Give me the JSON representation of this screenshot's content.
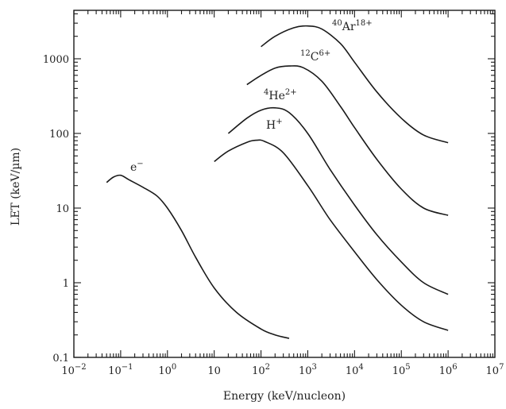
{
  "chart_data": {
    "type": "line",
    "xlabel": "Energy (keV/nucleon)",
    "ylabel": "LET (keV/µm)",
    "x_scale": "log",
    "y_scale": "log",
    "xlim": [
      0.01,
      10000000
    ],
    "ylim": [
      0.1,
      5000
    ],
    "x_ticks": [
      {
        "base": "10",
        "exp": "−2"
      },
      {
        "base": "10",
        "exp": "−1"
      },
      {
        "base": "10",
        "exp": "0"
      },
      {
        "base": "10",
        "exp": ""
      },
      {
        "base": "10",
        "exp": "2"
      },
      {
        "base": "10",
        "exp": "3"
      },
      {
        "base": "10",
        "exp": "4"
      },
      {
        "base": "10",
        "exp": "5"
      },
      {
        "base": "10",
        "exp": "6"
      },
      {
        "base": "10",
        "exp": "7"
      }
    ],
    "y_ticks": [
      "0.1",
      "1",
      "10",
      "100",
      "1000"
    ],
    "grid": false,
    "series": [
      {
        "name": "e−",
        "label_base": "e",
        "label_pre": "",
        "label_sup": "−",
        "points": [
          [
            0.05,
            22
          ],
          [
            0.07,
            26
          ],
          [
            0.1,
            27.5
          ],
          [
            0.15,
            24
          ],
          [
            0.3,
            19
          ],
          [
            0.6,
            14.5
          ],
          [
            1,
            10
          ],
          [
            2,
            5
          ],
          [
            4,
            2.2
          ],
          [
            10,
            0.85
          ],
          [
            30,
            0.4
          ],
          [
            100,
            0.24
          ],
          [
            200,
            0.2
          ],
          [
            400,
            0.18
          ]
        ]
      },
      {
        "name": "H+",
        "label_base": "H",
        "label_pre": "",
        "label_sup": "+",
        "points": [
          [
            10,
            42
          ],
          [
            20,
            58
          ],
          [
            50,
            76
          ],
          [
            80,
            81
          ],
          [
            120,
            78
          ],
          [
            300,
            55
          ],
          [
            1000,
            20
          ],
          [
            3000,
            7
          ],
          [
            10000,
            2.6
          ],
          [
            30000,
            1.1
          ],
          [
            100000,
            0.5
          ],
          [
            300000,
            0.3
          ],
          [
            1000000,
            0.23
          ]
        ]
      },
      {
        "name": "4He2+",
        "label_base": "He",
        "label_pre": "4",
        "label_sup": "2+",
        "points": [
          [
            20,
            100
          ],
          [
            50,
            160
          ],
          [
            100,
            205
          ],
          [
            200,
            220
          ],
          [
            400,
            190
          ],
          [
            1000,
            100
          ],
          [
            3000,
            33
          ],
          [
            10000,
            11
          ],
          [
            30000,
            4.4
          ],
          [
            100000,
            1.9
          ],
          [
            300000,
            1.0
          ],
          [
            1000000,
            0.7
          ]
        ]
      },
      {
        "name": "12C6+",
        "label_base": "C",
        "label_pre": "12",
        "label_sup": "6+",
        "points": [
          [
            50,
            450
          ],
          [
            100,
            600
          ],
          [
            200,
            750
          ],
          [
            400,
            800
          ],
          [
            800,
            760
          ],
          [
            2000,
            500
          ],
          [
            5000,
            230
          ],
          [
            10000,
            120
          ],
          [
            30000,
            45
          ],
          [
            100000,
            18
          ],
          [
            300000,
            10
          ],
          [
            1000000,
            8
          ]
        ]
      },
      {
        "name": "40Ar18+",
        "label_base": "Ar",
        "label_pre": "40",
        "label_sup": "18+",
        "points": [
          [
            100,
            1450
          ],
          [
            200,
            2000
          ],
          [
            500,
            2600
          ],
          [
            1000,
            2750
          ],
          [
            2000,
            2500
          ],
          [
            5000,
            1600
          ],
          [
            10000,
            900
          ],
          [
            30000,
            360
          ],
          [
            100000,
            160
          ],
          [
            300000,
            95
          ],
          [
            1000000,
            75
          ]
        ]
      }
    ]
  }
}
